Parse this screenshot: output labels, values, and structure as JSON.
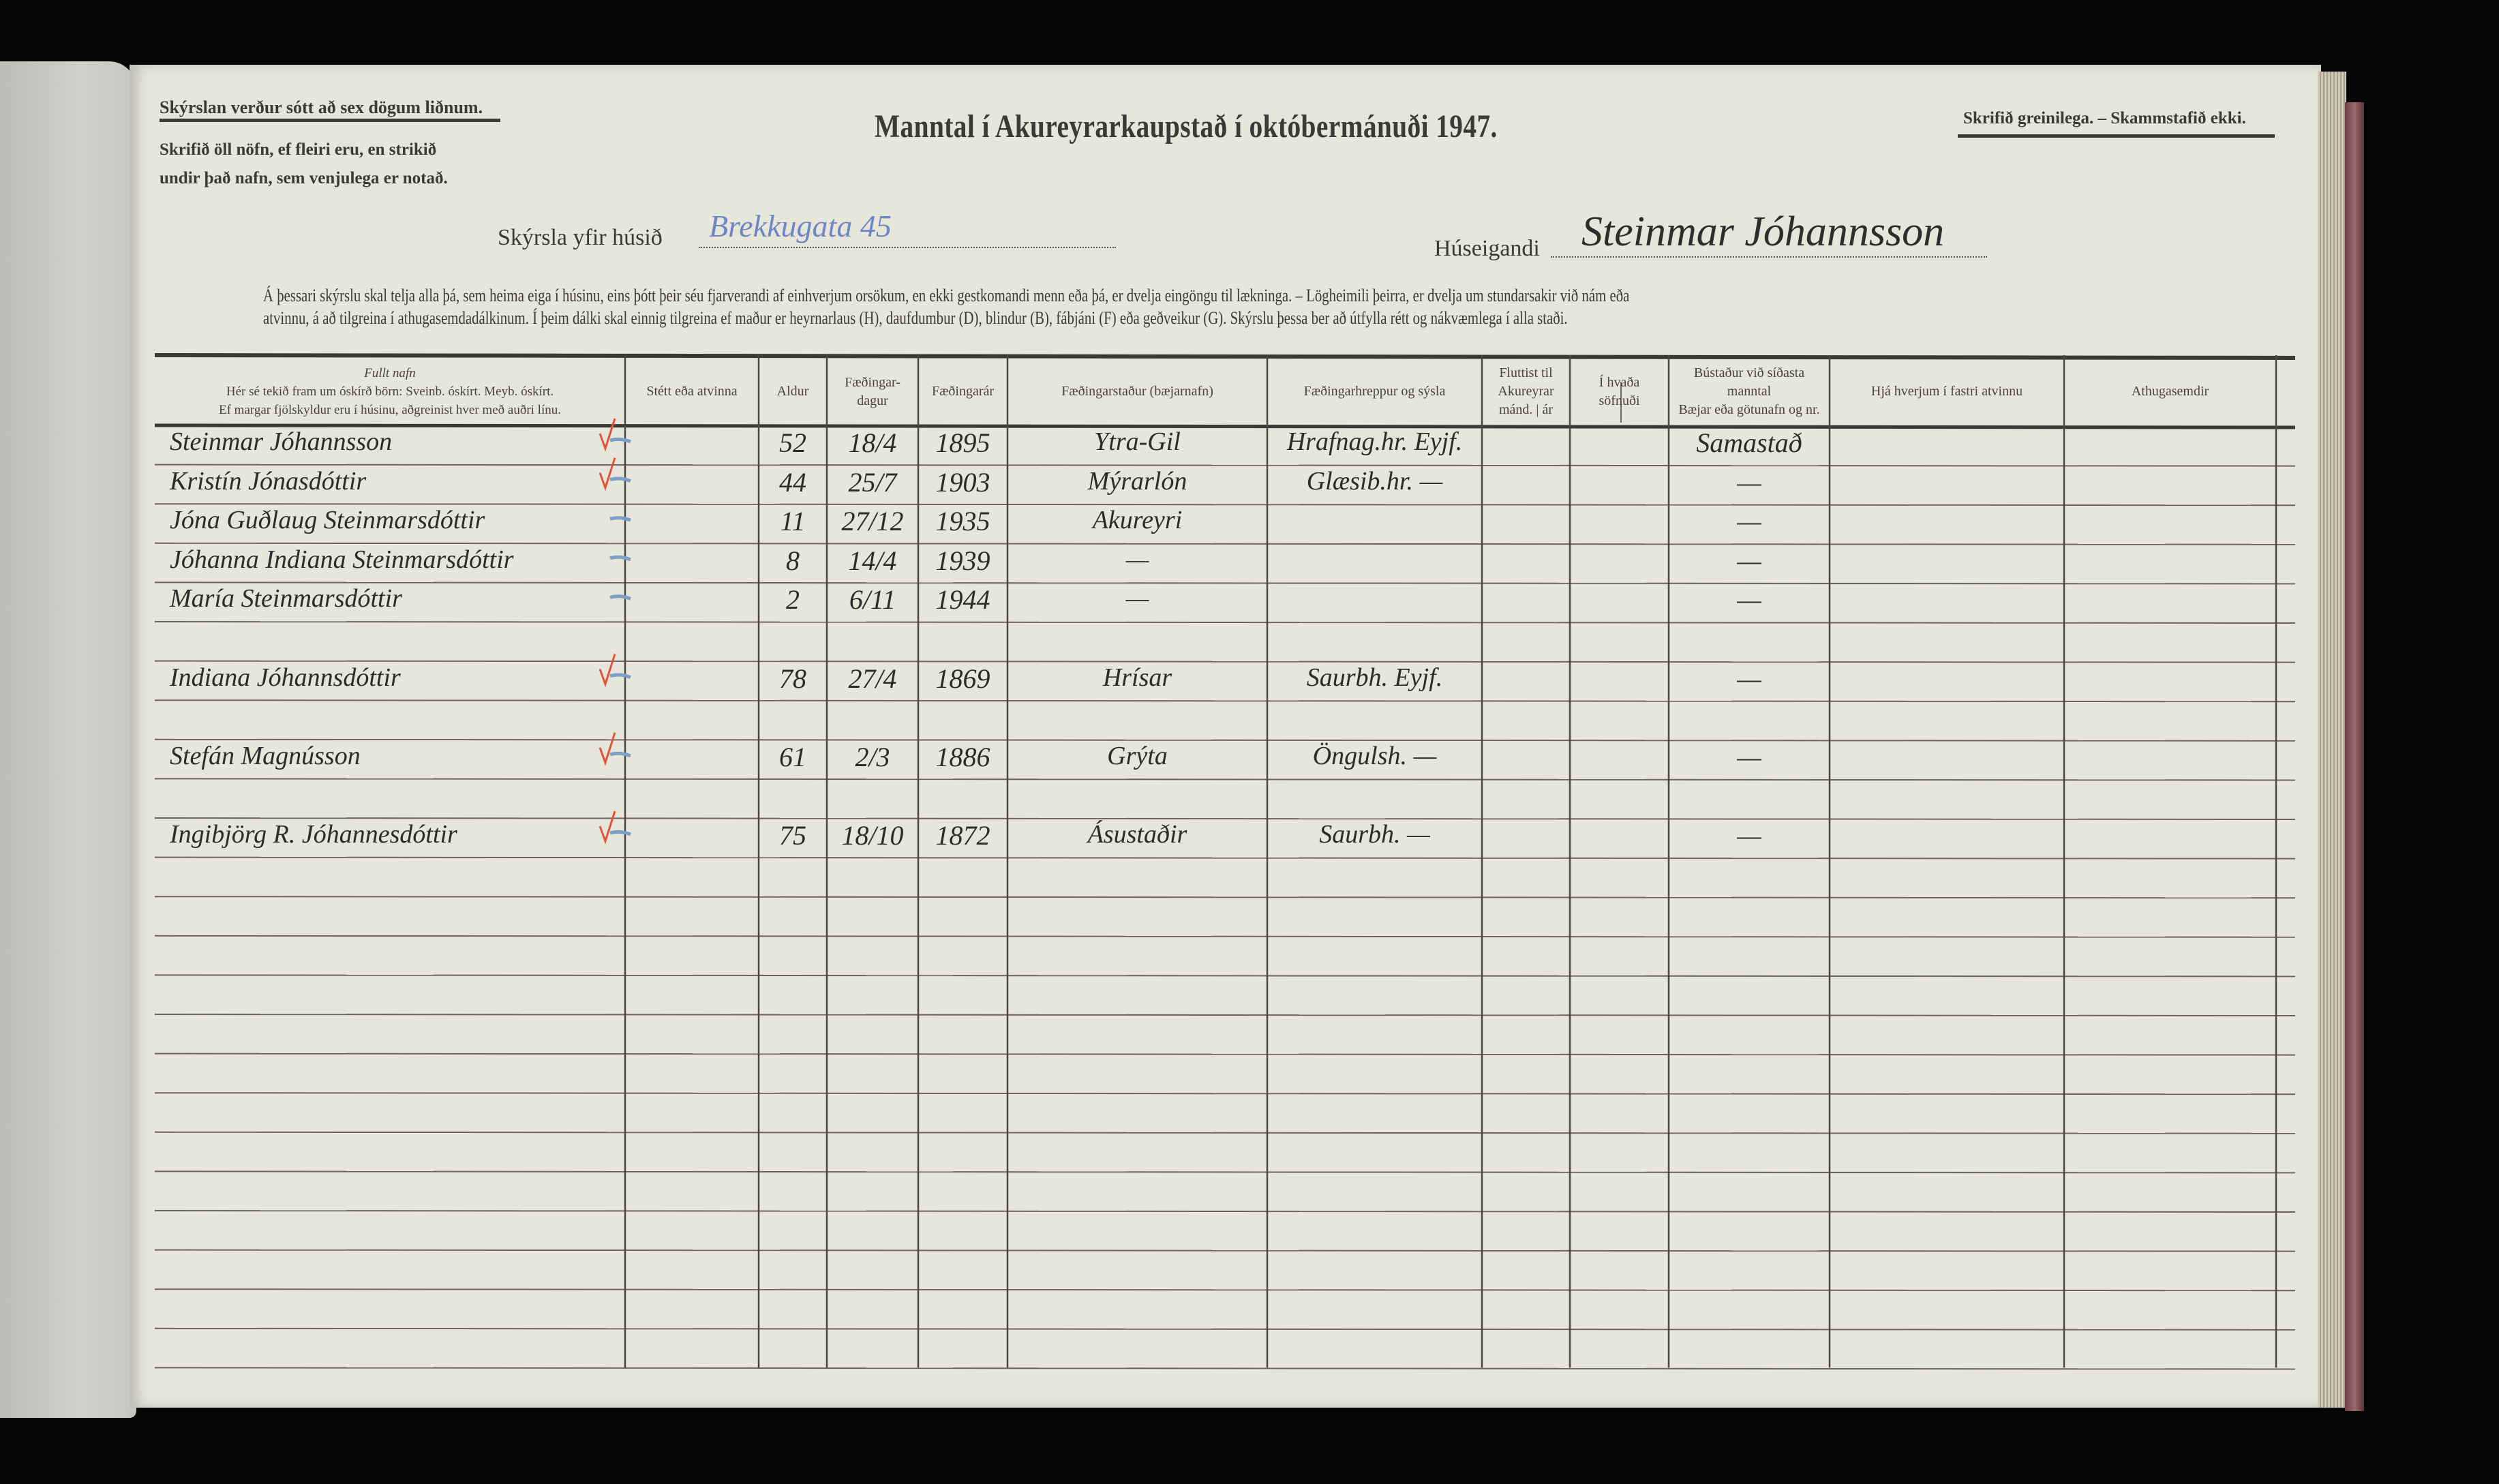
{
  "header": {
    "notice_top_left": "Skýrslan verður sótt að sex dögum liðnum.",
    "instruction_line1": "Skrifið öll nöfn, ef fleiri eru, en strikið",
    "instruction_line2": "undir það nafn, sem venjulega er notað.",
    "title": "Manntal í Akureyrarkaupstað í októbermánuði 1947.",
    "notice_top_right": "Skrifið greinilega. – Skammstafið ekki.",
    "house_label": "Skýrsla yfir húsið",
    "house_value": "Brekkugata 45",
    "owner_label": "Húseigandi",
    "owner_value": "Steinmar Jóhannsson",
    "paragraph_line1": "Á þessari skýrslu skal telja alla þá, sem heima eiga í húsinu, eins þótt þeir séu fjarverandi af einhverjum orsökum, en ekki gestkomandi menn eða þá, er dvelja eingöngu til lækninga. – Lögheimili þeirra, er dvelja um stundarsakir við nám eða",
    "paragraph_line2": "atvinnu, á að tilgreina í athugasemdadálkinum. Í þeim dálki skal einnig tilgreina ef maður er heyrnarlaus (H), daufdumbur (D), blindur (B), fábjáni (F) eða geðveikur (G). Skýrslu þessa ber að útfylla rétt og nákvæmlega í alla staði."
  },
  "colors": {
    "ink_blue": "#6f86c4",
    "check_red": "#e0553a",
    "dash_blue": "#7aa0c8",
    "paper": "#e7e6da"
  },
  "columns": [
    {
      "key": "name",
      "lines": [
        "Fullt nafn",
        "Hér sé tekið fram um óskírð börn: Sveinb. óskírt. Meyb. óskírt.",
        "Ef margar fjölskyldur eru í húsinu, aðgreinist hver með auðri línu."
      ]
    },
    {
      "key": "occupation",
      "lines": [
        "Stétt eða atvinna"
      ]
    },
    {
      "key": "age",
      "lines": [
        "Aldur"
      ]
    },
    {
      "key": "birth_day",
      "lines": [
        "Fæðingar-",
        "dagur"
      ]
    },
    {
      "key": "birth_year",
      "lines": [
        "Fæðingarár"
      ]
    },
    {
      "key": "birthplace",
      "lines": [
        "Fæðingarstaður (bæjarnafn)"
      ]
    },
    {
      "key": "parish",
      "lines": [
        "Fæðingarhreppur og sýsla"
      ]
    },
    {
      "key": "moved",
      "lines": [
        "Fluttist til",
        "Akureyrar",
        "mánd. | ár"
      ]
    },
    {
      "key": "congregation",
      "lines": [
        "Í hvaða",
        "söfnuði"
      ]
    },
    {
      "key": "prev_residence",
      "lines": [
        "Bústaður við síðasta",
        "manntal",
        "Bæjar eða götunafn og nr."
      ]
    },
    {
      "key": "employer",
      "lines": [
        "Hjá hverjum í fastri atvinnu"
      ]
    },
    {
      "key": "remarks",
      "lines": [
        "Athugasemdir"
      ]
    }
  ],
  "rows": [
    {
      "name": "Steinmar Jóhannsson",
      "age": "52",
      "birth_day": "18/4",
      "birth_year": "1895",
      "birthplace": "Ytra-Gil",
      "parish": "Hrafnag.hr. Eyjf.",
      "prev_residence": "Samastað",
      "checked": true
    },
    {
      "name": "Kristín Jónasdóttir",
      "age": "44",
      "birth_day": "25/7",
      "birth_year": "1903",
      "birthplace": "Mýrarlón",
      "parish": "Glæsib.hr. —",
      "prev_residence": "—",
      "checked": true
    },
    {
      "name": "Jóna Guðlaug Steinmarsdóttir",
      "age": "11",
      "birth_day": "27/12",
      "birth_year": "1935",
      "birthplace": "Akureyri",
      "prev_residence": "—",
      "checked": false
    },
    {
      "name": "Jóhanna Indiana Steinmarsdóttir",
      "age": "8",
      "birth_day": "14/4",
      "birth_year": "1939",
      "birthplace": "—",
      "prev_residence": "—",
      "checked": false
    },
    {
      "name": "María Steinmarsdóttir",
      "age": "2",
      "birth_day": "6/11",
      "birth_year": "1944",
      "birthplace": "—",
      "prev_residence": "—",
      "checked": false
    },
    {},
    {
      "name": "Indiana Jóhannsdóttir",
      "age": "78",
      "birth_day": "27/4",
      "birth_year": "1869",
      "birthplace": "Hrísar",
      "parish": "Saurbh. Eyjf.",
      "prev_residence": "—",
      "checked": true
    },
    {},
    {
      "name": "Stefán Magnússon",
      "age": "61",
      "birth_day": "2/3",
      "birth_year": "1886",
      "birthplace": "Grýta",
      "parish": "Öngulsh. —",
      "prev_residence": "—",
      "checked": true
    },
    {},
    {
      "name": "Ingibjörg R. Jóhannesdóttir",
      "age": "75",
      "birth_day": "18/10",
      "birth_year": "1872",
      "birthplace": "Ásustaðir",
      "parish": "Saurbh. —",
      "prev_residence": "—",
      "checked": true
    }
  ]
}
